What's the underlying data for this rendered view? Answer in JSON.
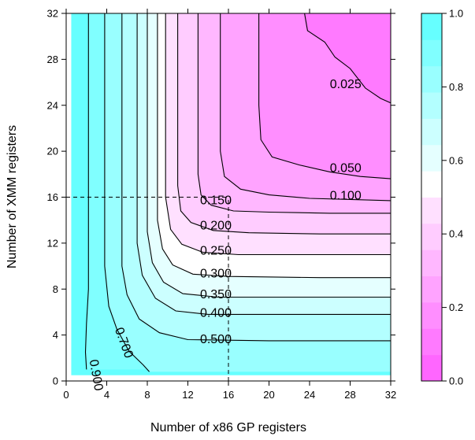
{
  "chart_data": {
    "type": "contour",
    "xlabel": "Number of x86 GP registers",
    "ylabel": "Number of XMM registers",
    "xlim": [
      0,
      32
    ],
    "ylim": [
      0,
      32
    ],
    "x_ticks": [
      "0",
      "4",
      "8",
      "12",
      "16",
      "20",
      "24",
      "28",
      "32"
    ],
    "y_ticks": [
      "0",
      "4",
      "8",
      "12",
      "16",
      "20",
      "24",
      "28",
      "32"
    ],
    "colorbar": {
      "range": [
        0.0,
        1.0
      ],
      "ticks": [
        "0.0",
        "0.2",
        "0.4",
        "0.6",
        "0.8",
        "1.0"
      ],
      "colors": [
        "#ff66ff",
        "#ff7aff",
        "#ff8eff",
        "#ffa3ff",
        "#ffb7ff",
        "#ffccff",
        "#ffe0ff",
        "#ffffff",
        "#e5ffff",
        "#ccffff",
        "#b3ffff",
        "#99ffff",
        "#80ffff",
        "#66ffff"
      ]
    },
    "reference_lines": {
      "x": 16,
      "y": 16
    },
    "contours": [
      {
        "level": "0.025",
        "label_at": [
          26.0,
          25.5
        ],
        "points": [
          [
            23.5,
            32
          ],
          [
            23.8,
            30.5
          ],
          [
            25.5,
            29.5
          ],
          [
            26.5,
            28.2
          ],
          [
            28,
            27.2
          ],
          [
            29.5,
            25.5
          ],
          [
            31,
            24.6
          ],
          [
            32,
            24.2
          ]
        ]
      },
      {
        "level": "0.050",
        "label_at": [
          26.0,
          18.2
        ],
        "points": [
          [
            19.0,
            32
          ],
          [
            19.0,
            24
          ],
          [
            19.2,
            21
          ],
          [
            20.3,
            19.5
          ],
          [
            23,
            18.8
          ],
          [
            26,
            18.2
          ],
          [
            29,
            17.8
          ],
          [
            32,
            17.6
          ]
        ]
      },
      {
        "level": "0.100",
        "label_at": [
          26.0,
          15.8
        ],
        "points": [
          [
            15.2,
            32
          ],
          [
            15.2,
            20
          ],
          [
            15.6,
            17.8
          ],
          [
            17.2,
            16.7
          ],
          [
            20,
            16.2
          ],
          [
            24,
            15.9
          ],
          [
            28,
            15.8
          ],
          [
            32,
            15.7
          ]
        ]
      },
      {
        "level": "0.150",
        "label_at": [
          13.2,
          15.4
        ],
        "points": [
          [
            13.0,
            32
          ],
          [
            13.0,
            18
          ],
          [
            13.3,
            16.2
          ],
          [
            14.3,
            15.3
          ],
          [
            16.5,
            14.8
          ],
          [
            20,
            14.7
          ],
          [
            26,
            14.6
          ],
          [
            32,
            14.6
          ]
        ]
      },
      {
        "level": "0.200",
        "label_at": [
          13.2,
          13.2
        ],
        "points": [
          [
            11.0,
            32
          ],
          [
            11.0,
            17
          ],
          [
            11.3,
            14.8
          ],
          [
            12.3,
            13.8
          ],
          [
            14.5,
            13.1
          ],
          [
            18,
            12.9
          ],
          [
            25,
            12.8
          ],
          [
            32,
            12.8
          ]
        ]
      },
      {
        "level": "0.250",
        "label_at": [
          13.2,
          11.0
        ],
        "points": [
          [
            9.8,
            32
          ],
          [
            9.8,
            16
          ],
          [
            10.3,
            13.2
          ],
          [
            11.4,
            11.9
          ],
          [
            13.5,
            11.2
          ],
          [
            17,
            11.0
          ],
          [
            25,
            11.0
          ],
          [
            32,
            11.0
          ]
        ]
      },
      {
        "level": "0.300",
        "label_at": [
          13.2,
          9.0
        ],
        "points": [
          [
            9.0,
            32
          ],
          [
            9.0,
            14
          ],
          [
            9.5,
            11.5
          ],
          [
            10.5,
            10.1
          ],
          [
            12.5,
            9.3
          ],
          [
            16,
            9.1
          ],
          [
            25,
            9.0
          ],
          [
            32,
            9.0
          ]
        ]
      },
      {
        "level": "0.350",
        "label_at": [
          13.2,
          7.2
        ],
        "points": [
          [
            8.0,
            32
          ],
          [
            8.0,
            13
          ],
          [
            8.5,
            10.3
          ],
          [
            9.6,
            8.6
          ],
          [
            11.5,
            7.6
          ],
          [
            15,
            7.3
          ],
          [
            25,
            7.3
          ],
          [
            32,
            7.3
          ]
        ]
      },
      {
        "level": "0.400",
        "label_at": [
          13.2,
          5.6
        ],
        "points": [
          [
            7.0,
            32
          ],
          [
            7.0,
            12
          ],
          [
            7.5,
            9.2
          ],
          [
            8.8,
            7.2
          ],
          [
            10.8,
            6.1
          ],
          [
            14,
            5.8
          ],
          [
            25,
            5.8
          ],
          [
            32,
            5.8
          ]
        ]
      },
      {
        "level": "0.500",
        "label_at": [
          13.2,
          3.3
        ],
        "points": [
          [
            5.5,
            32
          ],
          [
            5.5,
            10
          ],
          [
            6.0,
            7.5
          ],
          [
            7.2,
            5.4
          ],
          [
            9.2,
            4.2
          ],
          [
            12,
            3.6
          ],
          [
            20,
            3.5
          ],
          [
            32,
            3.5
          ]
        ]
      },
      {
        "level": "0.700",
        "label_at": [
          4.8,
          4.5
        ],
        "label_angle": 70,
        "points": [
          [
            3.8,
            32
          ],
          [
            3.8,
            10
          ],
          [
            4.2,
            6.5
          ],
          [
            5.0,
            4.5
          ],
          [
            6.2,
            2.6
          ],
          [
            7.6,
            1.4
          ],
          [
            8.2,
            0.8
          ]
        ]
      },
      {
        "level": "0.900",
        "label_at": [
          2.3,
          1.8
        ],
        "label_angle": 80,
        "points": [
          [
            2.2,
            32
          ],
          [
            2.2,
            8
          ],
          [
            2.0,
            5
          ],
          [
            1.9,
            2.5
          ],
          [
            2.0,
            1.0
          ]
        ]
      }
    ]
  }
}
